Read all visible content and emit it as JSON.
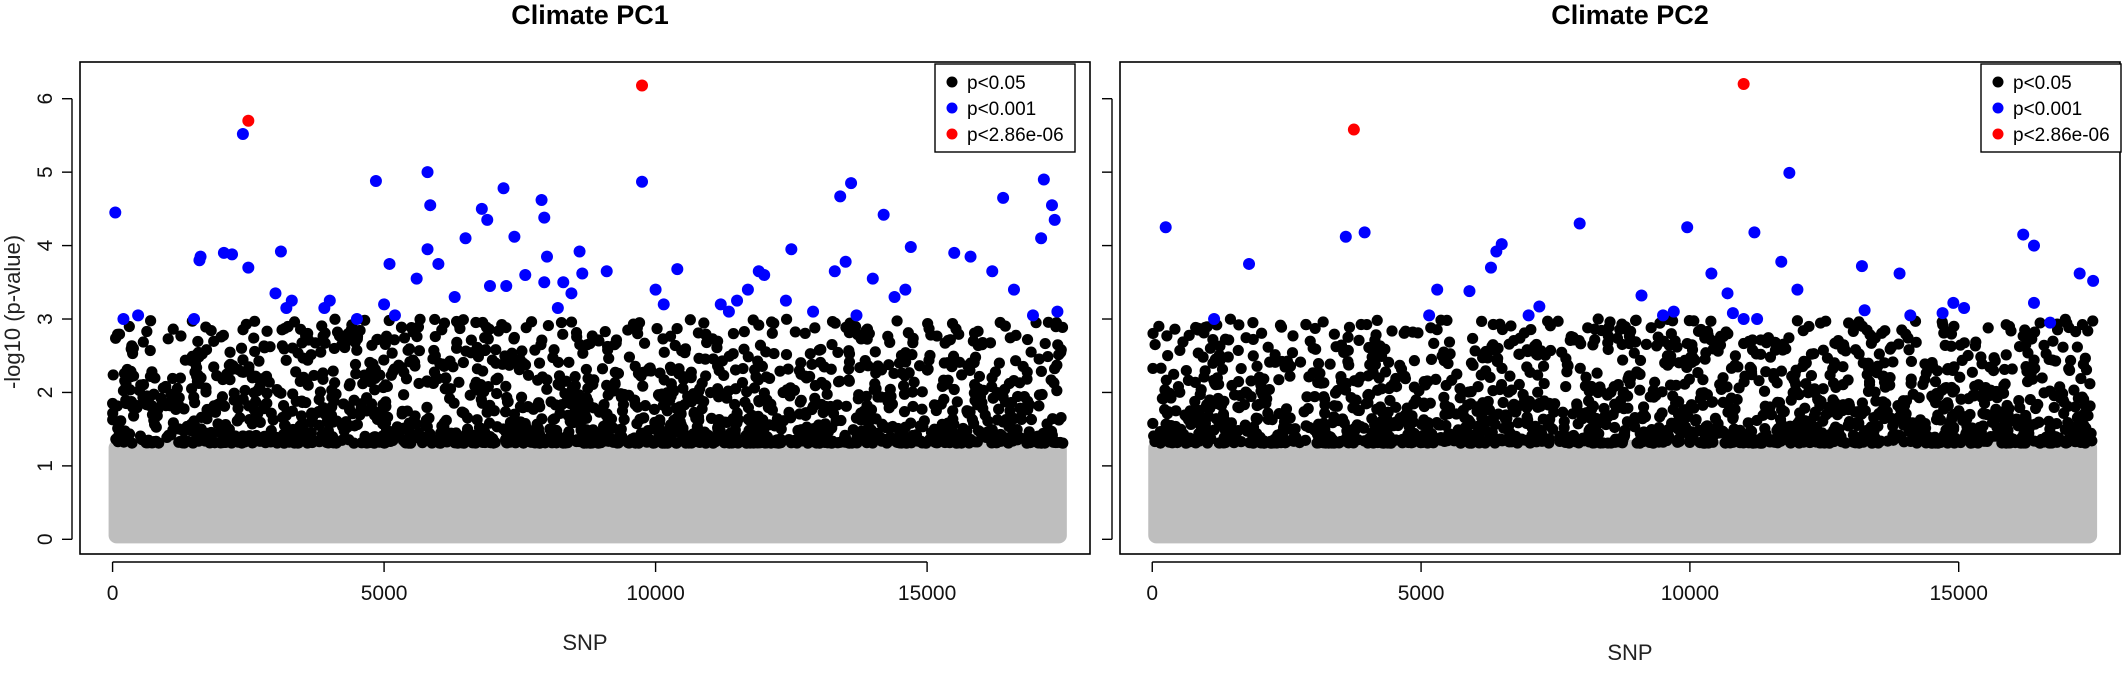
{
  "chart_data": [
    {
      "type": "scatter",
      "title": "Climate PC1",
      "xlabel": "SNP",
      "ylabel": "-log10 (p-value)",
      "xlim": [
        -600,
        18000
      ],
      "ylim": [
        -0.2,
        6.5
      ],
      "xticks": [
        0,
        5000,
        10000,
        15000
      ],
      "yticks": [
        0,
        1,
        2,
        3,
        4,
        5,
        6
      ],
      "y_tick_labels_shown": true,
      "n_snps": 17500,
      "background_band": {
        "color": "#bebebe",
        "y_min": 0,
        "y_max": 1.3,
        "description": "non-significant SNPs"
      },
      "significant_band": {
        "color": "#000000",
        "y_min": 1.31,
        "y_max": 3.0
      },
      "legend": {
        "placement": "top-right",
        "entries": [
          {
            "label": "p<0.05",
            "color": "#000000"
          },
          {
            "label": "p<0.001",
            "color": "#0000ff"
          },
          {
            "label": "p<2.86e-06",
            "color": "#ff0000"
          }
        ]
      },
      "series": [
        {
          "name": "p<0.001",
          "color": "#0000ff",
          "points": [
            [
              50,
              4.45
            ],
            [
              200,
              3.0
            ],
            [
              470,
              3.05
            ],
            [
              1500,
              3.0
            ],
            [
              1600,
              3.8
            ],
            [
              1620,
              3.85
            ],
            [
              2050,
              3.9
            ],
            [
              2200,
              3.88
            ],
            [
              2400,
              5.52
            ],
            [
              2500,
              3.7
            ],
            [
              3000,
              3.35
            ],
            [
              3100,
              3.92
            ],
            [
              3200,
              3.15
            ],
            [
              3300,
              3.25
            ],
            [
              3900,
              3.15
            ],
            [
              4000,
              3.25
            ],
            [
              4500,
              3.0
            ],
            [
              4850,
              4.88
            ],
            [
              5000,
              3.2
            ],
            [
              5100,
              3.75
            ],
            [
              5200,
              3.05
            ],
            [
              5600,
              3.55
            ],
            [
              5800,
              5.0
            ],
            [
              5850,
              4.55
            ],
            [
              5800,
              3.95
            ],
            [
              6000,
              3.75
            ],
            [
              6300,
              3.3
            ],
            [
              6500,
              4.1
            ],
            [
              6800,
              4.5
            ],
            [
              6900,
              4.35
            ],
            [
              6950,
              3.45
            ],
            [
              7200,
              4.78
            ],
            [
              7250,
              3.45
            ],
            [
              7400,
              4.12
            ],
            [
              7600,
              3.6
            ],
            [
              7900,
              4.62
            ],
            [
              7950,
              4.38
            ],
            [
              8000,
              3.85
            ],
            [
              7950,
              3.5
            ],
            [
              8200,
              3.15
            ],
            [
              8300,
              3.5
            ],
            [
              8450,
              3.35
            ],
            [
              8600,
              3.92
            ],
            [
              8650,
              3.62
            ],
            [
              9100,
              3.65
            ],
            [
              9750,
              4.87
            ],
            [
              10000,
              3.4
            ],
            [
              10150,
              3.2
            ],
            [
              10400,
              3.68
            ],
            [
              11200,
              3.2
            ],
            [
              11350,
              3.1
            ],
            [
              11500,
              3.25
            ],
            [
              11700,
              3.4
            ],
            [
              11900,
              3.65
            ],
            [
              12000,
              3.6
            ],
            [
              12400,
              3.25
            ],
            [
              12500,
              3.95
            ],
            [
              12900,
              3.1
            ],
            [
              13300,
              3.65
            ],
            [
              13400,
              4.67
            ],
            [
              13500,
              3.78
            ],
            [
              13600,
              4.85
            ],
            [
              13700,
              3.05
            ],
            [
              14000,
              3.55
            ],
            [
              14200,
              4.42
            ],
            [
              14400,
              3.3
            ],
            [
              14600,
              3.4
            ],
            [
              14700,
              3.98
            ],
            [
              15500,
              3.9
            ],
            [
              15800,
              3.85
            ],
            [
              16200,
              3.65
            ],
            [
              16400,
              4.65
            ],
            [
              16600,
              3.4
            ],
            [
              16950,
              3.05
            ],
            [
              17100,
              4.1
            ],
            [
              17150,
              4.9
            ],
            [
              17300,
              4.55
            ],
            [
              17350,
              4.35
            ],
            [
              17400,
              3.1
            ]
          ]
        },
        {
          "name": "p<2.86e-06",
          "color": "#ff0000",
          "points": [
            [
              2500,
              5.7
            ],
            [
              9750,
              6.18
            ]
          ]
        }
      ]
    },
    {
      "type": "scatter",
      "title": "Climate PC2",
      "xlabel": "SNP",
      "ylabel": "",
      "xlim": [
        -600,
        18000
      ],
      "ylim": [
        -0.2,
        6.5
      ],
      "xticks": [
        0,
        5000,
        10000,
        15000
      ],
      "yticks": [
        0,
        1,
        2,
        3,
        4,
        5,
        6
      ],
      "y_tick_labels_shown": false,
      "n_snps": 17500,
      "background_band": {
        "color": "#bebebe",
        "y_min": 0,
        "y_max": 1.3,
        "description": "non-significant SNPs"
      },
      "significant_band": {
        "color": "#000000",
        "y_min": 1.31,
        "y_max": 3.0
      },
      "legend": {
        "placement": "top-right",
        "entries": [
          {
            "label": "p<0.05",
            "color": "#000000"
          },
          {
            "label": "p<0.001",
            "color": "#0000ff"
          },
          {
            "label": "p<2.86e-06",
            "color": "#ff0000"
          }
        ]
      },
      "series": [
        {
          "name": "p<0.001",
          "color": "#0000ff",
          "points": [
            [
              250,
              4.25
            ],
            [
              1150,
              3.0
            ],
            [
              1800,
              3.75
            ],
            [
              3600,
              4.12
            ],
            [
              3950,
              4.18
            ],
            [
              5150,
              3.05
            ],
            [
              5300,
              3.4
            ],
            [
              5900,
              3.38
            ],
            [
              6300,
              3.7
            ],
            [
              6400,
              3.92
            ],
            [
              6500,
              4.02
            ],
            [
              7000,
              3.05
            ],
            [
              7200,
              3.17
            ],
            [
              7950,
              4.3
            ],
            [
              9100,
              3.32
            ],
            [
              9500,
              3.05
            ],
            [
              9700,
              3.1
            ],
            [
              9950,
              4.25
            ],
            [
              10400,
              3.62
            ],
            [
              10700,
              3.35
            ],
            [
              10800,
              3.08
            ],
            [
              11000,
              3.0
            ],
            [
              11200,
              4.18
            ],
            [
              11250,
              3.0
            ],
            [
              11700,
              3.78
            ],
            [
              11850,
              4.99
            ],
            [
              12000,
              3.4
            ],
            [
              13200,
              3.72
            ],
            [
              13250,
              3.12
            ],
            [
              13900,
              3.62
            ],
            [
              14100,
              3.05
            ],
            [
              14700,
              3.08
            ],
            [
              14900,
              3.22
            ],
            [
              15100,
              3.15
            ],
            [
              16200,
              4.15
            ],
            [
              16400,
              4.0
            ],
            [
              16400,
              3.22
            ],
            [
              16700,
              2.95
            ],
            [
              17250,
              3.62
            ],
            [
              17500,
              3.52
            ]
          ]
        },
        {
          "name": "p<2.86e-06",
          "color": "#ff0000",
          "points": [
            [
              3750,
              5.58
            ],
            [
              11000,
              6.2
            ]
          ]
        }
      ]
    }
  ]
}
